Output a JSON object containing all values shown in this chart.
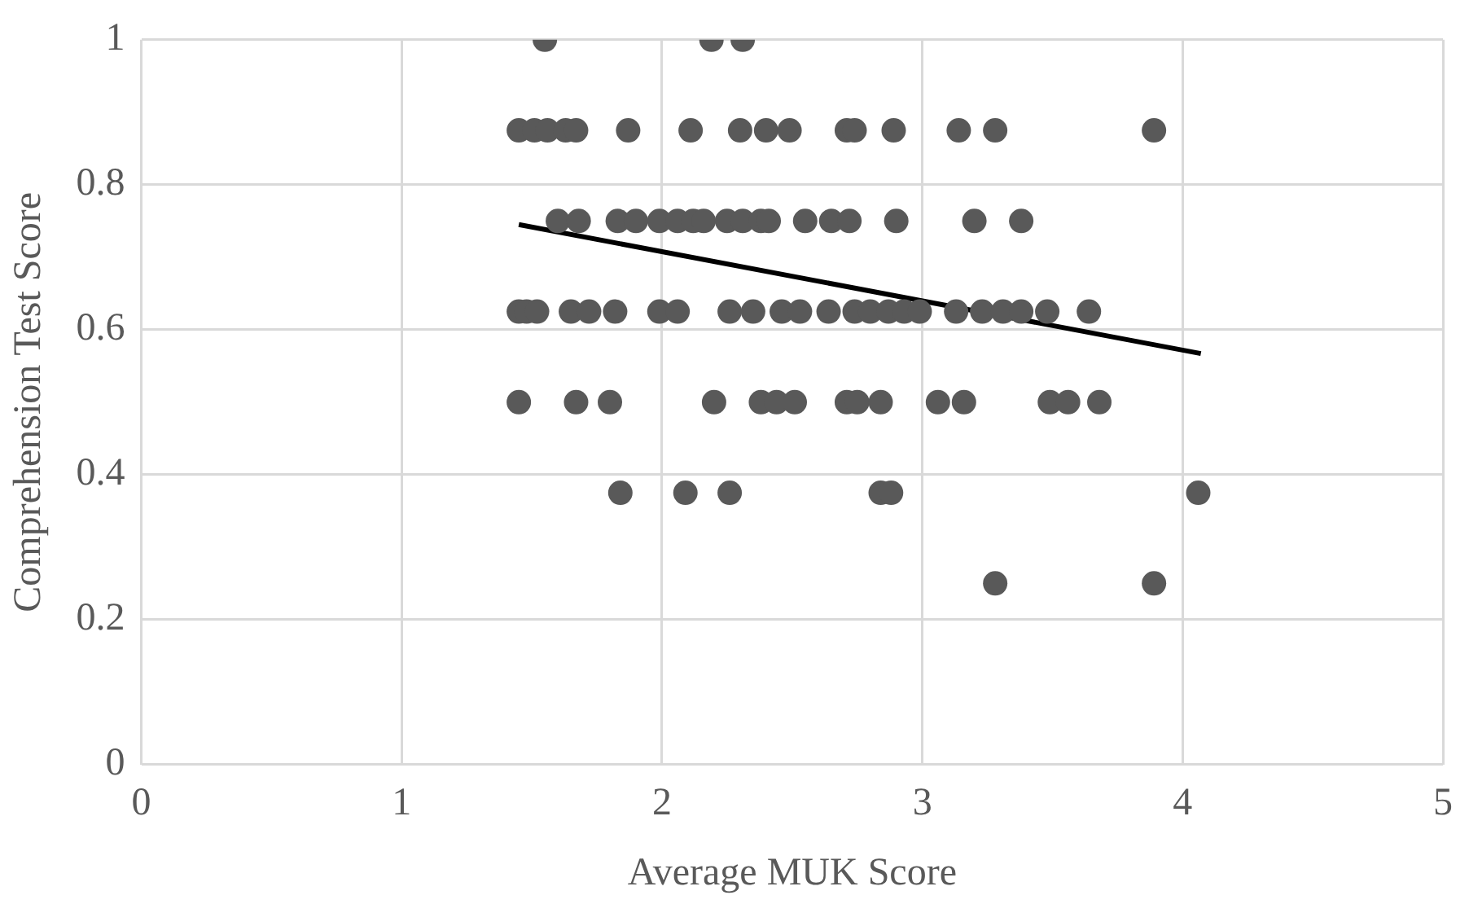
{
  "chart_data": {
    "type": "scatter",
    "xlabel": "Average MUK Score",
    "ylabel": "Comprehension Test Score",
    "xlim": [
      0,
      5
    ],
    "xticks": [
      0,
      1,
      2,
      3,
      4,
      5
    ],
    "ylim": [
      0,
      1
    ],
    "yticks": [
      0,
      0.2,
      0.4,
      0.6,
      0.8,
      1
    ],
    "grid": true,
    "legend": false,
    "marker": "circle",
    "series": [
      {
        "type": "scatter",
        "color": "#595959",
        "x": [
          1.55,
          2.19,
          2.31,
          1.45,
          1.51,
          1.56,
          1.63,
          1.67,
          1.87,
          2.11,
          2.3,
          2.4,
          2.49,
          2.71,
          2.74,
          2.89,
          3.14,
          3.28,
          3.89,
          1.6,
          1.68,
          1.83,
          1.9,
          1.99,
          2.06,
          2.12,
          2.16,
          2.25,
          2.31,
          2.38,
          2.41,
          2.55,
          2.65,
          2.72,
          2.9,
          3.2,
          3.38,
          1.45,
          1.48,
          1.52,
          1.65,
          1.72,
          1.82,
          1.99,
          2.06,
          2.26,
          2.35,
          2.46,
          2.53,
          2.64,
          2.74,
          2.8,
          2.87,
          2.93,
          2.99,
          3.13,
          3.23,
          3.31,
          3.38,
          3.48,
          3.64,
          1.45,
          1.67,
          1.8,
          2.2,
          2.38,
          2.44,
          2.51,
          2.71,
          2.75,
          2.84,
          3.06,
          3.16,
          3.49,
          3.56,
          3.68,
          1.84,
          2.09,
          2.26,
          2.84,
          2.88,
          4.06,
          3.28,
          3.89
        ],
        "values": [
          1,
          1,
          1,
          0.875,
          0.875,
          0.875,
          0.875,
          0.875,
          0.875,
          0.875,
          0.875,
          0.875,
          0.875,
          0.875,
          0.875,
          0.875,
          0.875,
          0.875,
          0.875,
          0.75,
          0.75,
          0.75,
          0.75,
          0.75,
          0.75,
          0.75,
          0.75,
          0.75,
          0.75,
          0.75,
          0.75,
          0.75,
          0.75,
          0.75,
          0.75,
          0.75,
          0.75,
          0.625,
          0.625,
          0.625,
          0.625,
          0.625,
          0.625,
          0.625,
          0.625,
          0.625,
          0.625,
          0.625,
          0.625,
          0.625,
          0.625,
          0.625,
          0.625,
          0.625,
          0.625,
          0.625,
          0.625,
          0.625,
          0.625,
          0.625,
          0.625,
          0.5,
          0.5,
          0.5,
          0.5,
          0.5,
          0.5,
          0.5,
          0.5,
          0.5,
          0.5,
          0.5,
          0.5,
          0.5,
          0.5,
          0.5,
          0.375,
          0.375,
          0.375,
          0.375,
          0.375,
          0.375,
          0.25,
          0.25
        ]
      },
      {
        "type": "line",
        "color": "#000000",
        "marker": "none",
        "x": [
          1.45,
          4.07
        ],
        "values": [
          0.745,
          0.567
        ]
      }
    ]
  }
}
